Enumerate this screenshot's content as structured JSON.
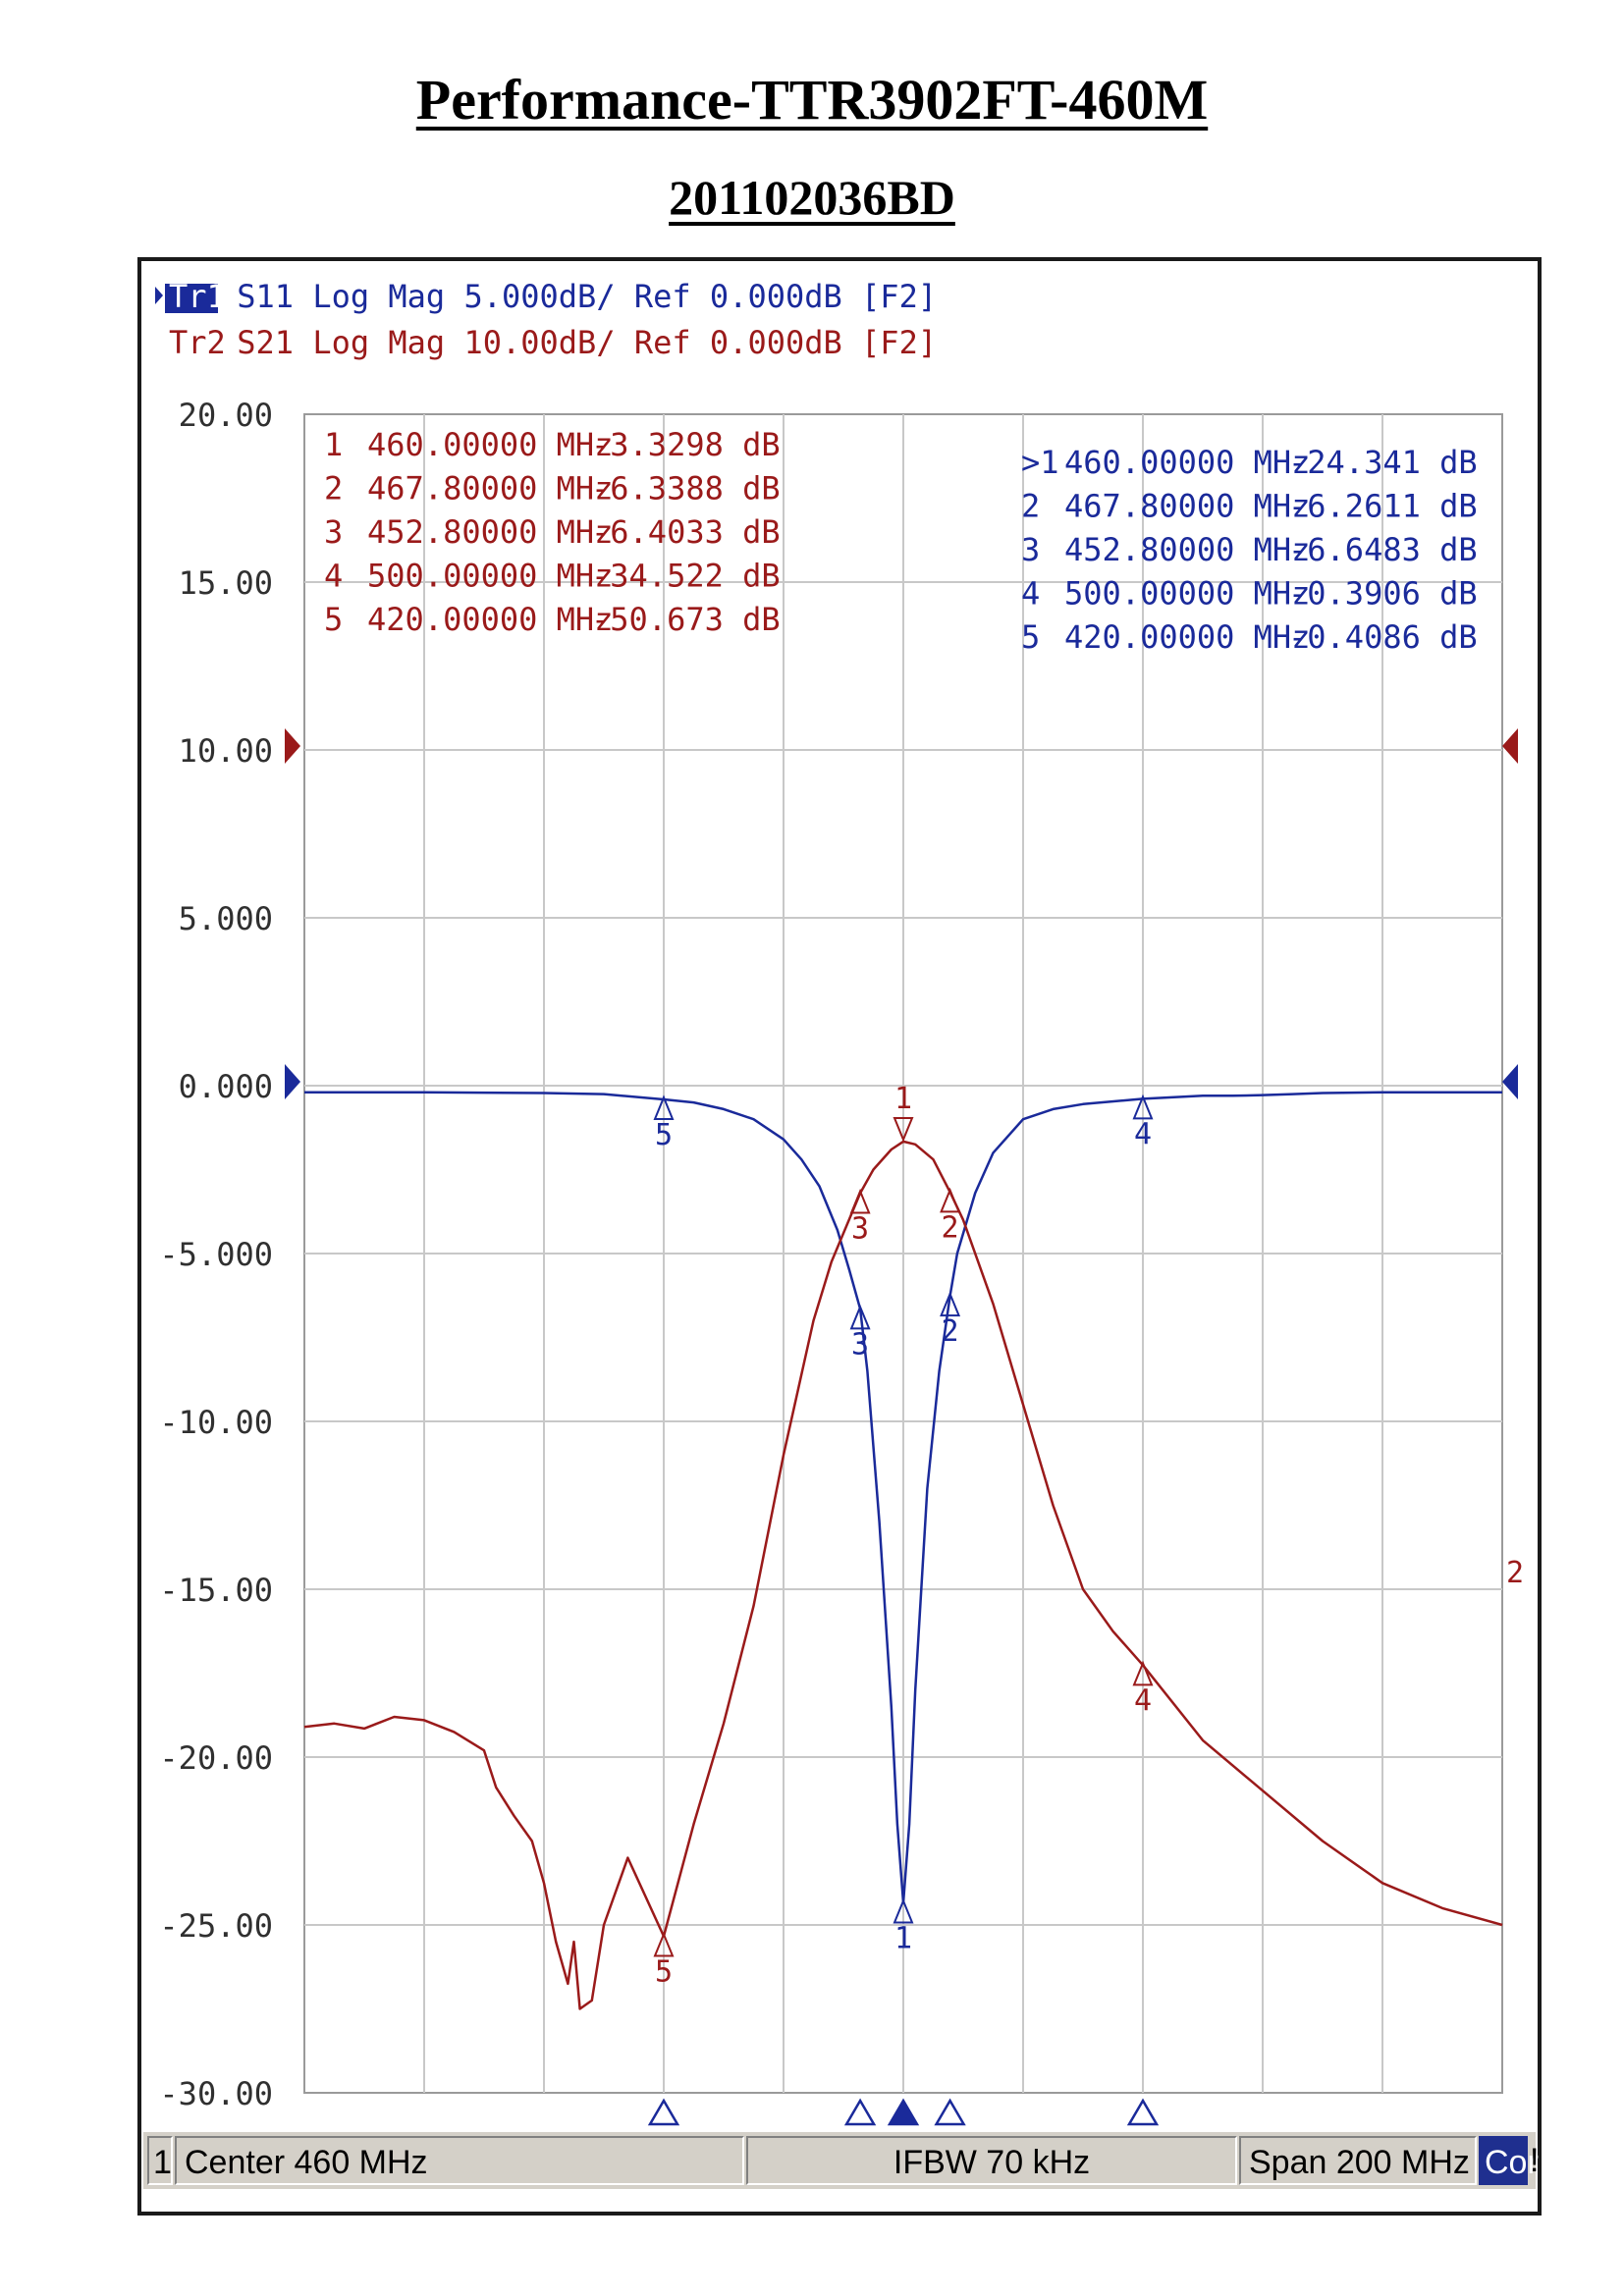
{
  "document": {
    "title": "Performance-TTR3902FT-460M",
    "subtitle": "201102036BD"
  },
  "colors": {
    "s11": "#1a2a9a",
    "s21": "#9a1a1a",
    "grid": "#c8c8c8",
    "active_trace_bg": "#1a2a9a"
  },
  "trace_headers": [
    {
      "id": "Tr1",
      "text": " S11 Log Mag 5.000dB/ Ref 0.000dB [F2]",
      "active": true
    },
    {
      "id": "Tr2",
      "text": " S21 Log Mag 10.00dB/ Ref 0.000dB [F2]",
      "active": false
    }
  ],
  "y_tick_labels": [
    "20.00",
    "15.00",
    "10.00",
    "5.000",
    "0.000",
    "-5.000",
    "-10.00",
    "-15.00",
    "-20.00",
    "-25.00",
    "-30.00"
  ],
  "marker_tables": {
    "s21": [
      {
        "n": "1",
        "freq": "460.00000 MHz",
        "value": "-3.3298 dB"
      },
      {
        "n": "2",
        "freq": "467.80000 MHz",
        "value": "-6.3388 dB"
      },
      {
        "n": "3",
        "freq": "452.80000 MHz",
        "value": "-6.4033 dB"
      },
      {
        "n": "4",
        "freq": "500.00000 MHz",
        "value": "-34.522 dB"
      },
      {
        "n": "5",
        "freq": "420.00000 MHz",
        "value": "-50.673 dB"
      }
    ],
    "s11": [
      {
        "n": ">1",
        "freq": "460.00000 MHz",
        "value": "-24.341 dB"
      },
      {
        "n": "2",
        "freq": "467.80000 MHz",
        "value": "-6.2611 dB"
      },
      {
        "n": "3",
        "freq": "452.80000 MHz",
        "value": "-6.6483 dB"
      },
      {
        "n": "4",
        "freq": "500.00000 MHz",
        "value": "-0.3906 dB"
      },
      {
        "n": "5",
        "freq": "420.00000 MHz",
        "value": "-0.4086 dB"
      }
    ]
  },
  "status_bar": {
    "channel": "1",
    "center": "Center 460 MHz",
    "ifbw": "IFBW 70 kHz",
    "span": "Span 200 MHz",
    "cor": "Cor",
    "bang": "!"
  },
  "chart_data": {
    "type": "line",
    "x_range_mhz": [
      360,
      560
    ],
    "y_display_range": [
      -30,
      20
    ],
    "grid": true,
    "x_divisions": 10,
    "y_divisions": 10,
    "series": [
      {
        "name": "S11",
        "key": "s11",
        "scale_db_per_div": 5,
        "ref_db": 0,
        "x": [
          360,
          380,
          400,
          410,
          420,
          425,
          430,
          435,
          440,
          443,
          446,
          449,
          451,
          452.8,
          454,
          456,
          458,
          459,
          460,
          461,
          462,
          464,
          466,
          467.8,
          469,
          472,
          475,
          480,
          485,
          490,
          500,
          510,
          515,
          520,
          525,
          530,
          540,
          550,
          560
        ],
        "y": [
          -0.2,
          -0.2,
          -0.22,
          -0.25,
          -0.4086,
          -0.5,
          -0.7,
          -1.0,
          -1.6,
          -2.2,
          -3.0,
          -4.3,
          -5.5,
          -6.6483,
          -8.5,
          -13.0,
          -18.5,
          -22.0,
          -24.341,
          -22.0,
          -18.0,
          -12.0,
          -8.5,
          -6.2611,
          -5.0,
          -3.2,
          -2.0,
          -1.0,
          -0.7,
          -0.55,
          -0.3906,
          -0.3,
          -0.3,
          -0.28,
          -0.25,
          -0.22,
          -0.2,
          -0.2,
          -0.2
        ]
      },
      {
        "name": "S21",
        "key": "s21",
        "scale_db_per_div": 10,
        "ref_db": 0,
        "x": [
          360,
          365,
          370,
          375,
          380,
          385,
          390,
          392,
          395,
          398,
          400,
          402,
          404,
          405,
          406,
          408,
          410,
          414,
          420,
          425,
          430,
          435,
          440,
          445,
          448,
          452.8,
          455,
          458,
          460,
          462,
          465,
          467.8,
          470,
          475,
          480,
          485,
          490,
          495,
          500,
          510,
          520,
          530,
          540,
          550,
          560
        ],
        "y": [
          -38.2,
          -38.0,
          -38.3,
          -37.6,
          -37.8,
          -38.5,
          -39.6,
          -41.8,
          -43.5,
          -45.0,
          -47.5,
          -51.0,
          -53.5,
          -51.0,
          -55.0,
          -54.5,
          -50.0,
          -46.0,
          -50.673,
          -44.0,
          -38.0,
          -31.0,
          -22.0,
          -14.0,
          -10.5,
          -6.4033,
          -5.0,
          -3.8,
          -3.3298,
          -3.5,
          -4.4,
          -6.3388,
          -8.0,
          -13.0,
          -19.0,
          -25.0,
          -30.0,
          -32.5,
          -34.522,
          -39.0,
          -42.0,
          -45.0,
          -47.5,
          -49.0,
          -50.0
        ]
      }
    ],
    "markers": [
      420,
      452.8,
      460,
      467.8,
      500
    ],
    "active_marker": 460
  }
}
